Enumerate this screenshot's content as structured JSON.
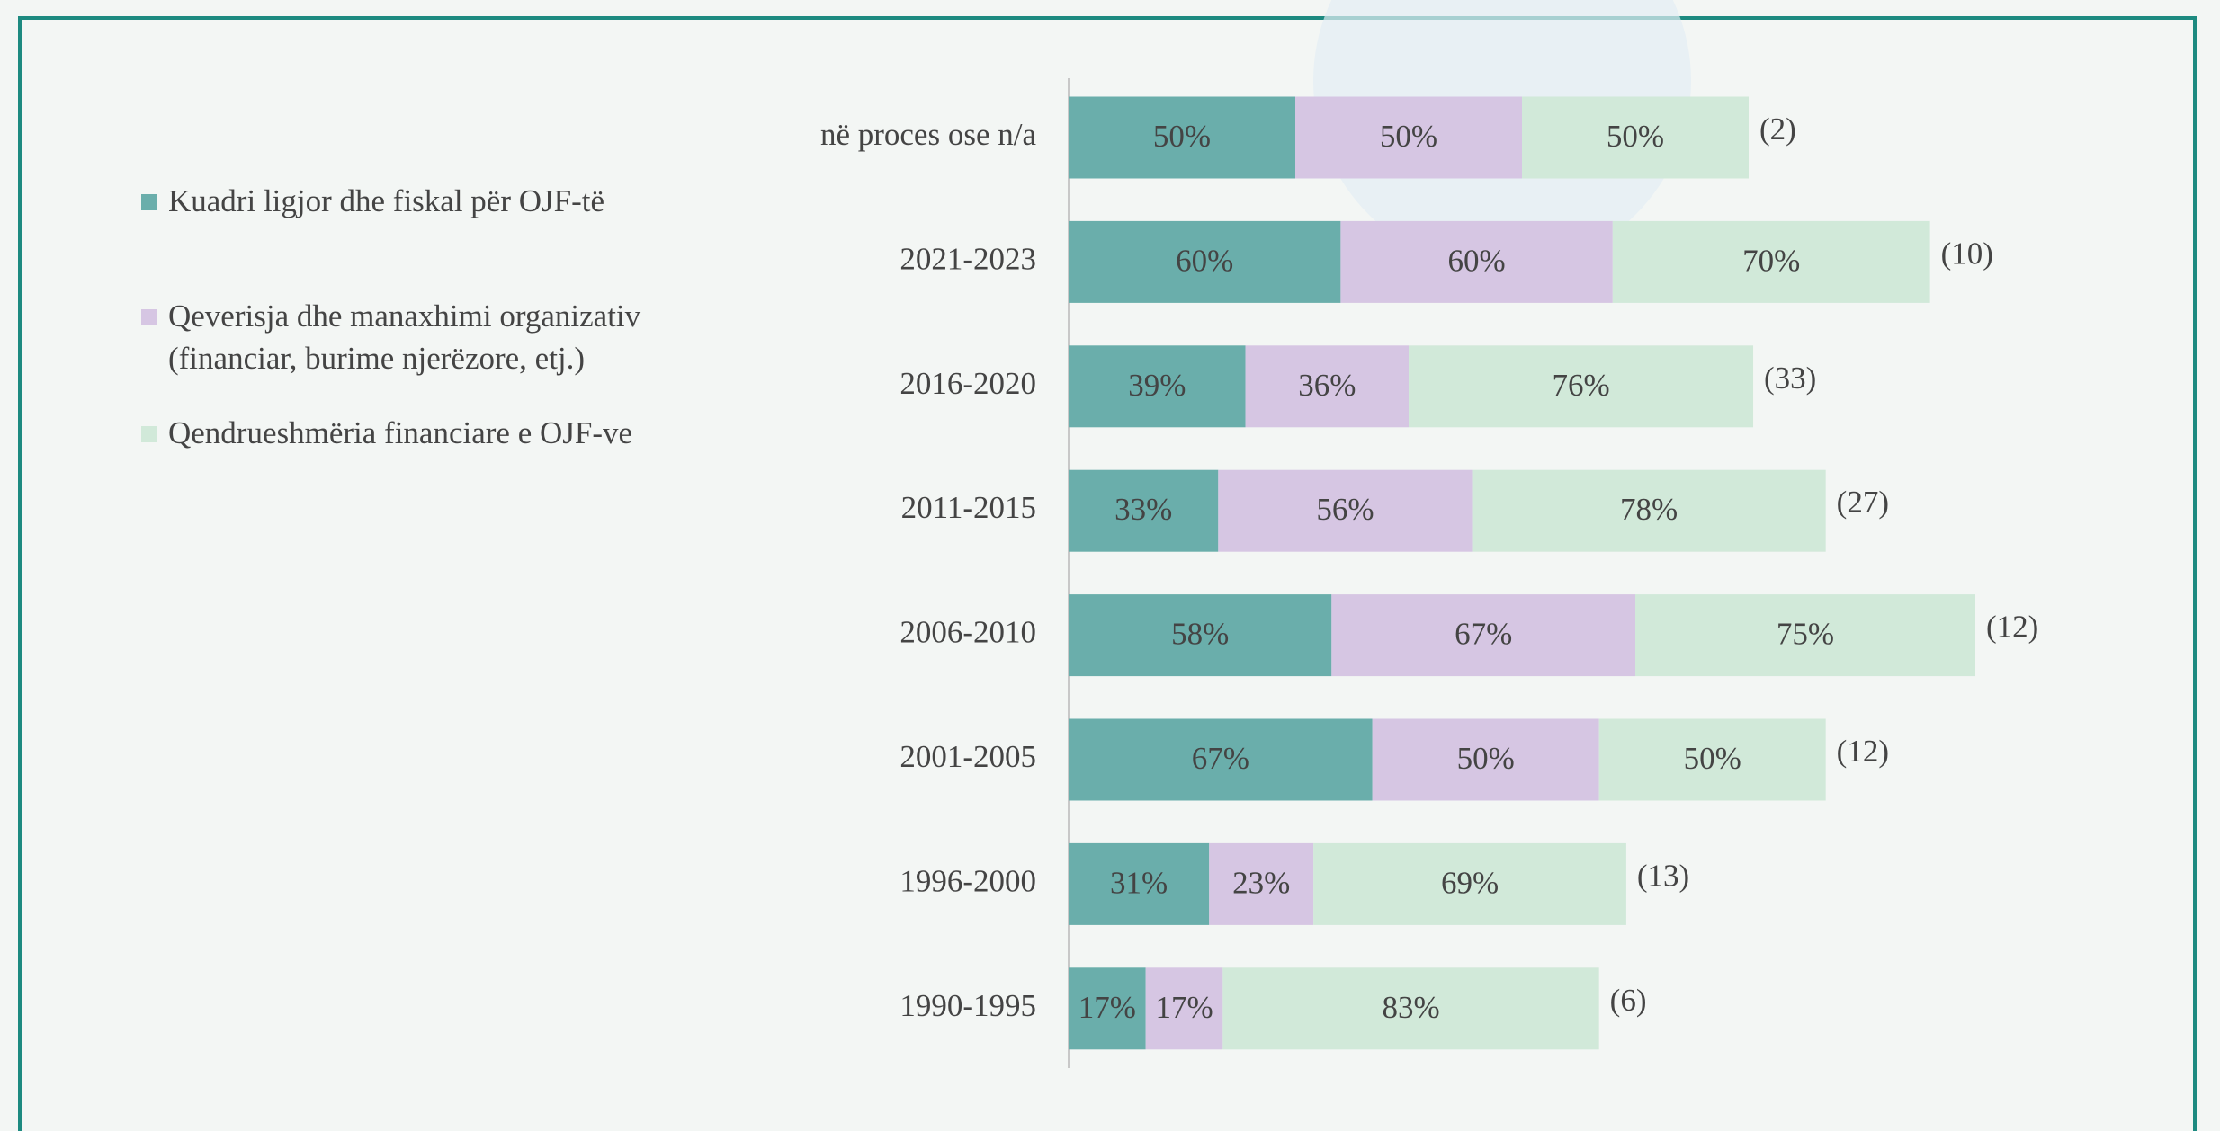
{
  "chart_data": {
    "type": "stacked-bar-horizontal",
    "categories": [
      "në proces ose n/a",
      "2021-2023",
      "2016-2020",
      "2011-2015",
      "2006-2010",
      "2001-2005",
      "1996-2000",
      "1990-1995"
    ],
    "series": [
      {
        "name": "Kuadri ligjor dhe fiskal për OJF-të",
        "color": "#6aaeab",
        "values": [
          50,
          60,
          39,
          33,
          58,
          67,
          31,
          17
        ],
        "value_labels": [
          "50%",
          "60%",
          "39%",
          "33%",
          "58%",
          "67%",
          "31%",
          "17%"
        ]
      },
      {
        "name": "Qeverisja dhe manaxhimi organizativ (financiar, burime njerëzore, etj.)",
        "color": "#d6c6e3",
        "values": [
          50,
          60,
          36,
          56,
          67,
          50,
          23,
          17
        ],
        "value_labels": [
          "50%",
          "60%",
          "36%",
          "56%",
          "67%",
          "50%",
          "23%",
          "17%"
        ]
      },
      {
        "name": "Qendrueshmëria financiare e OJF-ve",
        "color": "#d1e9d9",
        "values": [
          50,
          70,
          76,
          78,
          75,
          50,
          69,
          83
        ],
        "value_labels": [
          "50%",
          "70%",
          "76%",
          "78%",
          "75%",
          "50%",
          "69%",
          "83%"
        ]
      }
    ],
    "annotations": [
      "(2)",
      "(10)",
      "(33)",
      "(27)",
      "(12)",
      "(12)",
      "(13)",
      "(6)"
    ],
    "legend": "left"
  }
}
